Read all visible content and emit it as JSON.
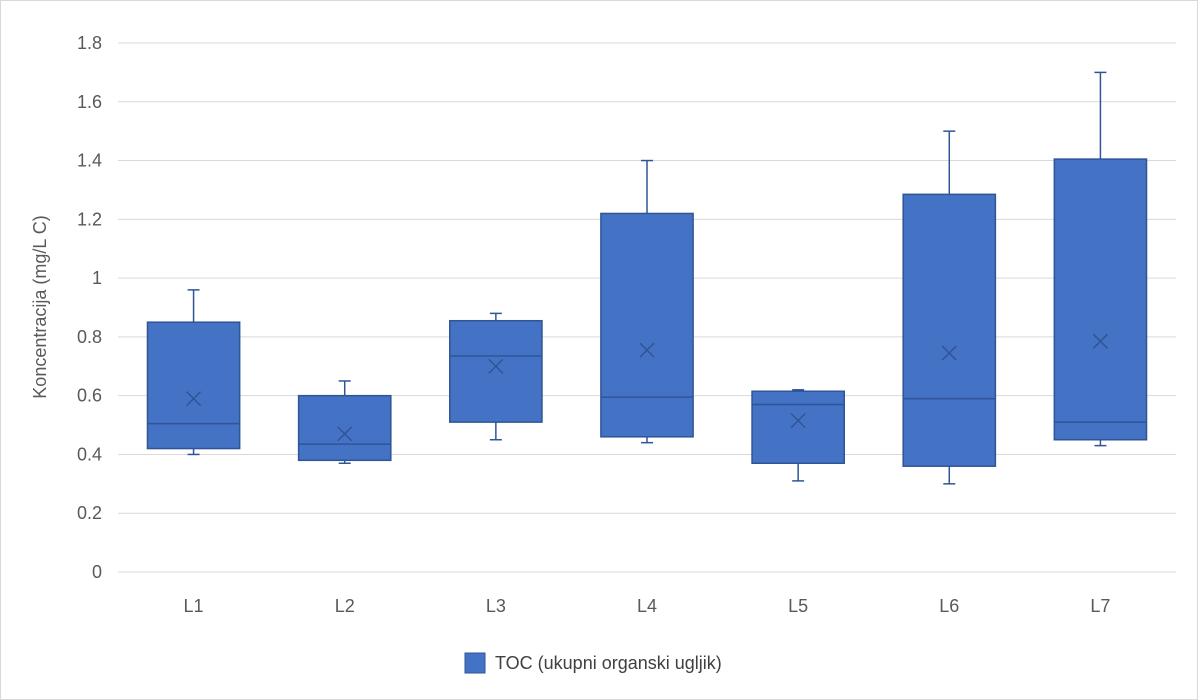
{
  "chart_data": {
    "type": "box",
    "title": "",
    "xlabel": "",
    "ylabel": "Koncentracija (mg/L C)",
    "ylim": [
      0,
      1.8
    ],
    "yticks": [
      "0",
      "0.2",
      "0.4",
      "0.6",
      "0.8",
      "1",
      "1.2",
      "1.4",
      "1.6",
      "1.8"
    ],
    "ytick_values": [
      0,
      0.2,
      0.4,
      0.6,
      0.8,
      1.0,
      1.2,
      1.4,
      1.6,
      1.8
    ],
    "grid": true,
    "legend_position": "bottom",
    "categories": [
      "L1",
      "L2",
      "L3",
      "L4",
      "L5",
      "L6",
      "L7"
    ],
    "series": [
      {
        "name": "TOC (ukupni organski ugljik)",
        "color": "#4472c4",
        "boxes": [
          {
            "min": 0.4,
            "q1": 0.42,
            "median": 0.505,
            "q3": 0.85,
            "max": 0.96,
            "mean": 0.59
          },
          {
            "min": 0.37,
            "q1": 0.38,
            "median": 0.435,
            "q3": 0.6,
            "max": 0.65,
            "mean": 0.47
          },
          {
            "min": 0.45,
            "q1": 0.51,
            "median": 0.735,
            "q3": 0.855,
            "max": 0.88,
            "mean": 0.7
          },
          {
            "min": 0.44,
            "q1": 0.46,
            "median": 0.595,
            "q3": 1.22,
            "max": 1.4,
            "mean": 0.755
          },
          {
            "min": 0.31,
            "q1": 0.37,
            "median": 0.57,
            "q3": 0.615,
            "max": 0.62,
            "mean": 0.515
          },
          {
            "min": 0.3,
            "q1": 0.36,
            "median": 0.59,
            "q3": 1.285,
            "max": 1.5,
            "mean": 0.745
          },
          {
            "min": 0.43,
            "q1": 0.45,
            "median": 0.51,
            "q3": 1.405,
            "max": 1.7,
            "mean": 0.785
          }
        ]
      }
    ]
  }
}
